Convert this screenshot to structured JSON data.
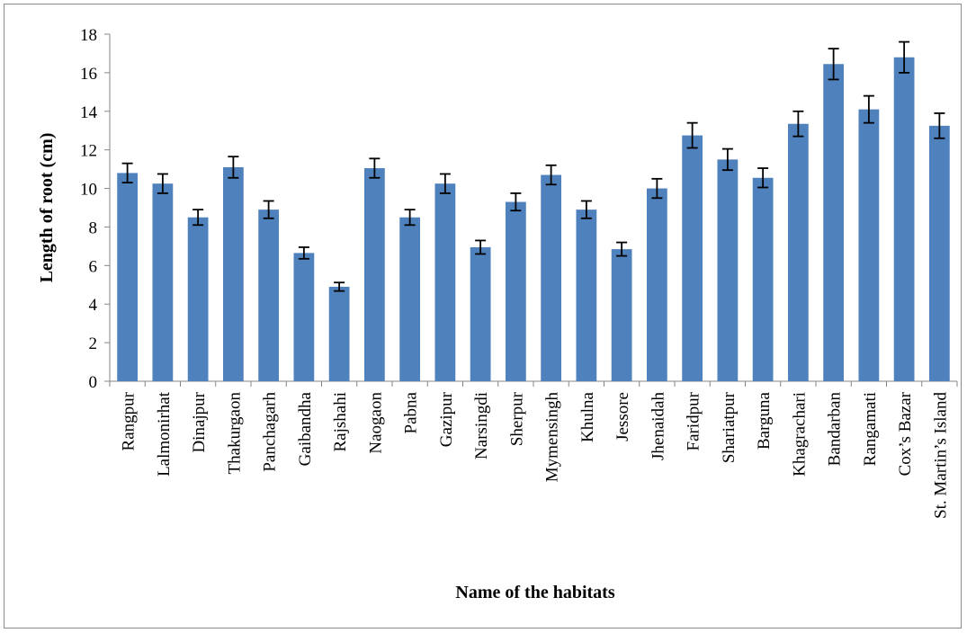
{
  "chart_data": {
    "type": "bar",
    "title": "",
    "xlabel": "Name of the habitats",
    "ylabel": "Length of root (cm)",
    "ylim": [
      0,
      18
    ],
    "yticks": [
      0,
      2,
      4,
      6,
      8,
      10,
      12,
      14,
      16,
      18
    ],
    "grid": false,
    "legend": "none",
    "bar_color": "#4f81bd",
    "categories": [
      "Rangpur",
      "Lalmonirhat",
      "Dinajpur",
      "Thakurgaon",
      "Panchagarh",
      "Gaibandha",
      "Rajshahi",
      "Naogaon",
      "Pabna",
      "Gazipur",
      "Narsingdi",
      "Sherpur",
      "Mymensingh",
      "Khulna",
      "Jessore",
      "Jhenaidah",
      "Faridpur",
      "Shariatpur",
      "Barguna",
      "Khagrachari",
      "Bandarban",
      "Rangamati",
      "Cox’s Bazar",
      "St. Martin’s Island"
    ],
    "values": [
      10.8,
      10.25,
      8.5,
      11.1,
      8.9,
      6.65,
      4.9,
      11.05,
      8.5,
      10.25,
      6.95,
      9.3,
      10.7,
      8.9,
      6.85,
      10.0,
      12.75,
      11.5,
      10.55,
      13.35,
      16.45,
      14.1,
      16.8,
      13.25
    ],
    "errors": [
      0.5,
      0.5,
      0.4,
      0.55,
      0.45,
      0.3,
      0.22,
      0.5,
      0.4,
      0.5,
      0.35,
      0.45,
      0.5,
      0.45,
      0.35,
      0.5,
      0.65,
      0.55,
      0.5,
      0.65,
      0.8,
      0.7,
      0.8,
      0.65
    ]
  }
}
